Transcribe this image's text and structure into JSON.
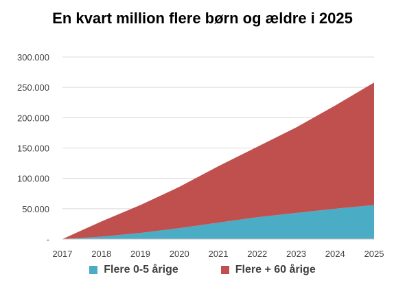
{
  "chart_data": {
    "type": "area",
    "stacked": true,
    "title": "En kvart million flere børn og ældre i 2025",
    "categories": [
      "2017",
      "2018",
      "2019",
      "2020",
      "2021",
      "2022",
      "2023",
      "2024",
      "2025"
    ],
    "series": [
      {
        "name": "Flere 0-5 årige",
        "color": "#4bacc6",
        "values": [
          0,
          4000,
          10000,
          18000,
          27000,
          36000,
          43000,
          50000,
          56000
        ]
      },
      {
        "name": "Flere + 60 årige",
        "color": "#c0504d",
        "values": [
          0,
          25000,
          46000,
          68000,
          93000,
          116000,
          141000,
          170000,
          202000
        ]
      }
    ],
    "y_ticks": [
      "-",
      "50.000",
      "100.000",
      "150.000",
      "200.000",
      "250.000",
      "300.000"
    ],
    "ylim": [
      0,
      300000
    ],
    "grid": true,
    "legend_position": "bottom"
  }
}
